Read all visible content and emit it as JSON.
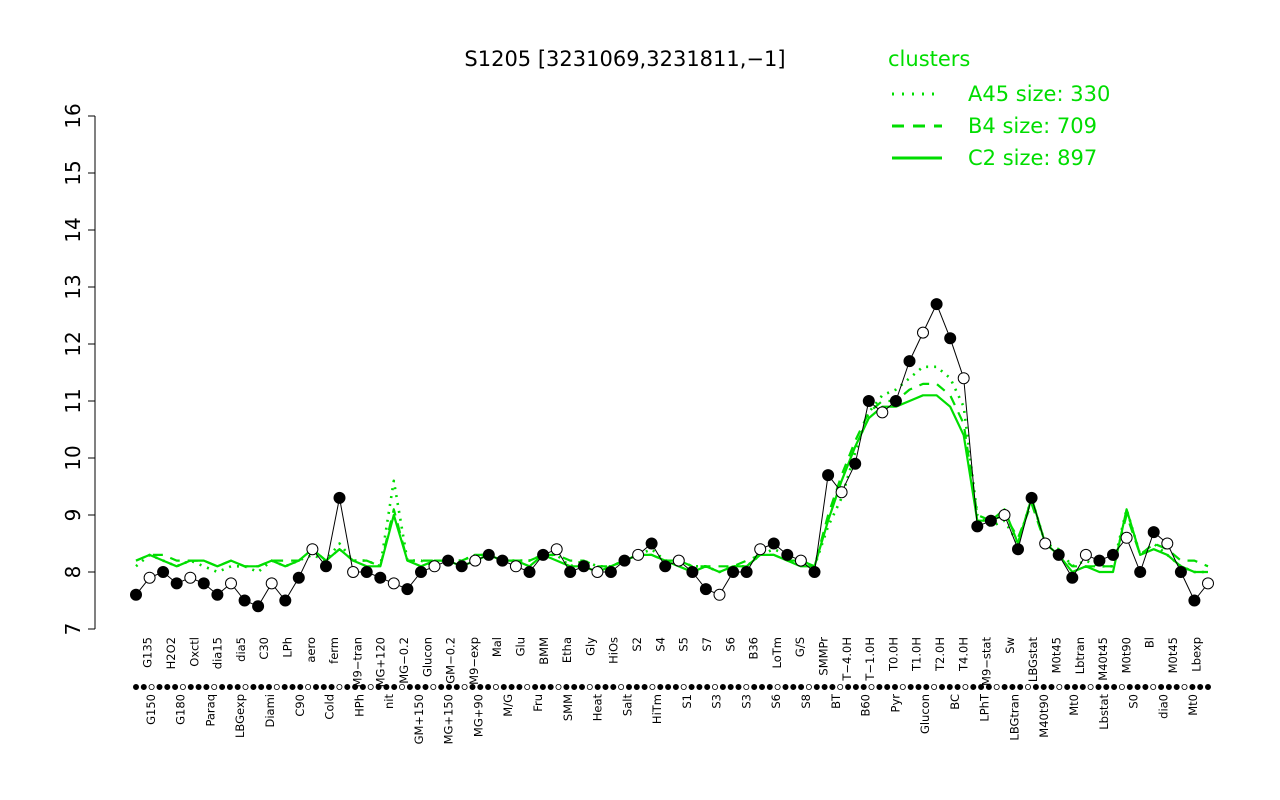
{
  "chart_data": {
    "type": "line",
    "title": "S1205 [3231069,3231811,−1]",
    "xlabel": "",
    "ylabel": "",
    "ylim": [
      7,
      16
    ],
    "y_ticks": [
      "7",
      "8",
      "9",
      "10",
      "11",
      "12",
      "13",
      "14",
      "15",
      "16"
    ],
    "grid": false,
    "legend": {
      "title": "clusters",
      "placement": "top-right",
      "entries": [
        {
          "label": "A45 size: 330",
          "style": "dotted"
        },
        {
          "label": "B4 size: 709",
          "style": "dashed"
        },
        {
          "label": "C2 size: 897",
          "style": "solid"
        }
      ]
    },
    "colors": {
      "clusters": "#00dd00",
      "points": "#000000"
    },
    "x_labels_top": [
      "G135",
      "H2O2",
      "Oxctl",
      "dia15",
      "dia5",
      "C30",
      "LPh",
      "aero",
      "ferm",
      "M9−tran",
      "MG+120",
      "MG−0.2",
      "Glucon",
      "GM−0.2",
      "M9−exp",
      "Mal",
      "Glu",
      "BMM",
      "Etha",
      "Gly",
      "HiOs",
      "S2",
      "S4",
      "S5",
      "S7",
      "S6",
      "B36",
      "LoTm",
      "G/S",
      "SMMPr",
      "T−4.0H",
      "T−1.0H",
      "T0.0H",
      "T1.0H",
      "T2.0H",
      "T4.0H",
      "M9−stat",
      "Sw",
      "LBGstat",
      "M0t45",
      "Lbtran",
      "M40t45",
      "M0t90",
      "Bl",
      "M0t45",
      "Lbexp"
    ],
    "x_labels_bottom": [
      "G150",
      "G180",
      "Paraq",
      "LBGexp",
      "Diami",
      "C90",
      "Cold",
      "HPh",
      "nit",
      "GM+150",
      "MG+150",
      "MG+90",
      "M/G",
      "Fru",
      "SMM",
      "Heat",
      "Salt",
      "HiTm",
      "S1",
      "S3",
      "S3",
      "S6",
      "S8",
      "BT",
      "B60",
      "Pyr",
      "Glucon",
      "BC",
      "LPhT",
      "LBGtran",
      "M40t90",
      "Mt0",
      "Lbstat",
      "S0",
      "dia0",
      "Mt0"
    ],
    "x": [
      1,
      2,
      3,
      4,
      5,
      6,
      7,
      8,
      9,
      10,
      11,
      12,
      13,
      14,
      15,
      16,
      17,
      18,
      19,
      20,
      21,
      22,
      23,
      24,
      25,
      26,
      27,
      28,
      29,
      30,
      31,
      32,
      33,
      34,
      35,
      36,
      37,
      38,
      39,
      40,
      41,
      42,
      43,
      44,
      45,
      46,
      47,
      48,
      49,
      50,
      51,
      52,
      53,
      54,
      55,
      56,
      57,
      58,
      59,
      60,
      61,
      62,
      63,
      64,
      65,
      66,
      67,
      68,
      69,
      70,
      71,
      72,
      73,
      74,
      75,
      76,
      77,
      78,
      79,
      80
    ],
    "series": [
      {
        "name": "",
        "values": [
          7.6,
          7.9,
          8.0,
          7.8,
          7.9,
          7.8,
          7.6,
          7.8,
          7.5,
          7.4,
          7.8,
          7.5,
          7.9,
          8.4,
          8.1,
          9.3,
          8.0,
          8.0,
          7.9,
          7.8,
          7.7,
          8.0,
          8.1,
          8.2,
          8.1,
          8.2,
          8.3,
          8.2,
          8.1,
          8.0,
          8.3,
          8.4,
          8.0,
          8.1,
          8.0,
          8.0,
          8.2,
          8.3,
          8.5,
          8.1,
          8.2,
          8.0,
          7.7,
          7.6,
          8.0,
          8.0,
          8.4,
          8.5,
          8.3,
          8.2,
          8.0,
          9.7,
          9.4,
          9.9,
          11.0,
          10.8,
          11.0,
          11.7,
          12.2,
          12.7,
          12.1,
          11.4,
          8.8,
          8.9,
          9.0,
          8.4,
          9.3,
          8.5,
          8.3,
          7.9,
          8.3,
          8.2,
          8.3,
          8.6,
          8.0,
          8.7,
          8.5,
          8.0,
          7.5,
          7.8
        ]
      },
      {
        "name": "A45 size: 330",
        "values": [
          8.1,
          8.3,
          8.2,
          8.1,
          8.2,
          8.1,
          8.0,
          8.1,
          8.1,
          8.0,
          8.2,
          8.1,
          8.2,
          8.3,
          8.2,
          8.5,
          8.2,
          8.2,
          8.1,
          9.6,
          8.2,
          8.2,
          8.1,
          8.2,
          8.2,
          8.3,
          8.3,
          8.2,
          8.2,
          8.2,
          8.3,
          8.3,
          8.1,
          8.2,
          8.1,
          8.1,
          8.2,
          8.3,
          8.4,
          8.2,
          8.2,
          8.1,
          8.1,
          8.0,
          8.1,
          8.1,
          8.3,
          8.4,
          8.3,
          8.2,
          8.1,
          8.8,
          9.3,
          10.1,
          10.8,
          11.1,
          11.2,
          11.4,
          11.6,
          11.6,
          11.4,
          10.9,
          9.0,
          8.8,
          8.9,
          8.5,
          9.3,
          8.5,
          8.4,
          8.1,
          8.2,
          8.1,
          8.1,
          9.1,
          8.3,
          8.5,
          8.3,
          8.1,
          8.0,
          8.0
        ]
      },
      {
        "name": "B4 size: 709",
        "values": [
          8.2,
          8.3,
          8.3,
          8.2,
          8.2,
          8.2,
          8.1,
          8.2,
          8.1,
          8.1,
          8.2,
          8.2,
          8.2,
          8.4,
          8.2,
          8.4,
          8.2,
          8.2,
          8.1,
          9.1,
          8.2,
          8.2,
          8.2,
          8.2,
          8.2,
          8.3,
          8.3,
          8.2,
          8.2,
          8.2,
          8.3,
          8.3,
          8.2,
          8.2,
          8.1,
          8.1,
          8.2,
          8.3,
          8.3,
          8.2,
          8.2,
          8.1,
          8.1,
          8.1,
          8.1,
          8.2,
          8.3,
          8.3,
          8.2,
          8.2,
          8.1,
          9.0,
          9.7,
          10.3,
          10.8,
          11.0,
          11.0,
          11.2,
          11.3,
          11.3,
          11.1,
          10.6,
          9.0,
          8.9,
          9.0,
          8.6,
          9.2,
          8.5,
          8.3,
          8.1,
          8.1,
          8.1,
          8.1,
          9.0,
          8.3,
          8.5,
          8.4,
          8.2,
          8.2,
          8.1
        ]
      },
      {
        "name": "C2 size: 897",
        "values": [
          8.2,
          8.3,
          8.2,
          8.1,
          8.2,
          8.2,
          8.1,
          8.2,
          8.1,
          8.1,
          8.2,
          8.1,
          8.2,
          8.4,
          8.2,
          8.4,
          8.2,
          8.1,
          8.1,
          9.0,
          8.2,
          8.1,
          8.2,
          8.2,
          8.1,
          8.2,
          8.3,
          8.2,
          8.2,
          8.1,
          8.3,
          8.2,
          8.1,
          8.1,
          8.0,
          8.1,
          8.2,
          8.3,
          8.3,
          8.2,
          8.1,
          8.0,
          8.1,
          8.0,
          8.1,
          8.1,
          8.3,
          8.3,
          8.2,
          8.1,
          8.1,
          8.9,
          9.6,
          10.2,
          10.7,
          10.9,
          10.9,
          11.0,
          11.1,
          11.1,
          10.9,
          10.4,
          8.9,
          8.9,
          9.1,
          8.5,
          9.3,
          8.5,
          8.3,
          8.0,
          8.1,
          8.0,
          8.0,
          9.1,
          8.3,
          8.4,
          8.3,
          8.1,
          8.0,
          8.0
        ]
      }
    ]
  }
}
